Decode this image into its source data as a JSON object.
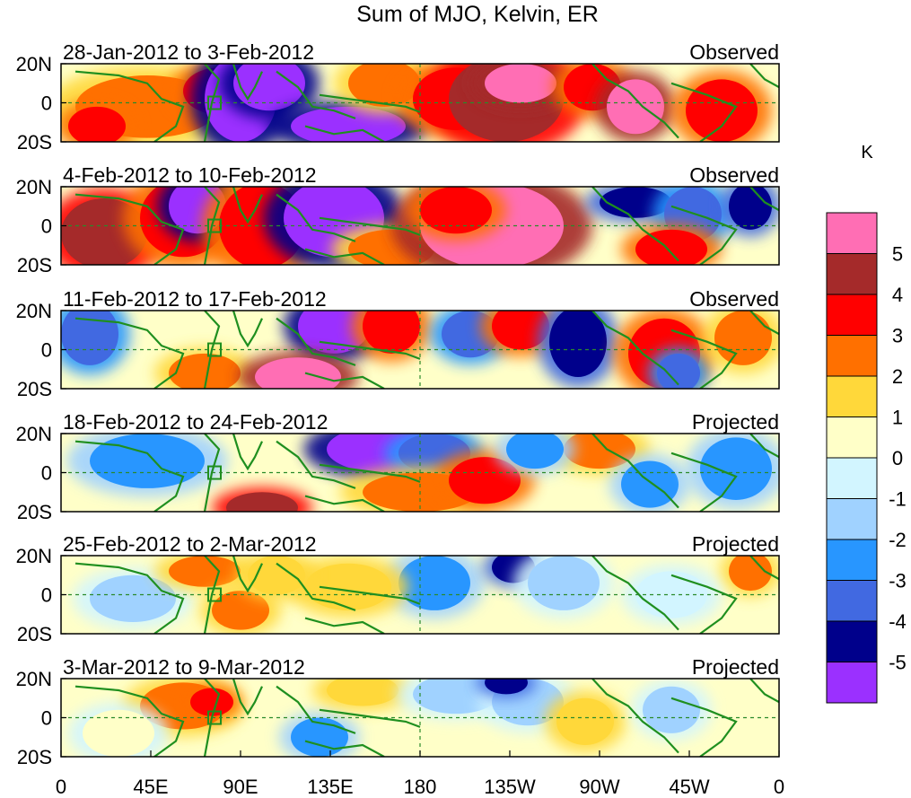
{
  "title": "Sum of MJO, Kelvin, ER",
  "unit": "K",
  "panels": [
    {
      "period": "28-Jan-2012 to 3-Feb-2012",
      "status": "Observed"
    },
    {
      "period": "4-Feb-2012 to 10-Feb-2012",
      "status": "Observed"
    },
    {
      "period": "11-Feb-2012 to 17-Feb-2012",
      "status": "Observed"
    },
    {
      "period": "18-Feb-2012 to 24-Feb-2012",
      "status": "Projected"
    },
    {
      "period": "25-Feb-2012 to 2-Mar-2012",
      "status": "Projected"
    },
    {
      "period": "3-Mar-2012 to 9-Mar-2012",
      "status": "Projected"
    }
  ],
  "lat_labels": [
    "20N",
    "0",
    "20S"
  ],
  "lon_labels": [
    "0",
    "45E",
    "90E",
    "135E",
    "180",
    "135W",
    "90W",
    "45W",
    "0"
  ],
  "colorbar": {
    "labels": [
      "5",
      "4",
      "3",
      "2",
      "1",
      "0",
      "-1",
      "-2",
      "-3",
      "-4",
      "-5"
    ],
    "colors": [
      "#ff6eb4",
      "#a52a2a",
      "#ff0000",
      "#ff7000",
      "#ffd83a",
      "#ffffc8",
      "#d2f5ff",
      "#a0d2ff",
      "#2896ff",
      "#4169e1",
      "#00008b",
      "#9b30ff"
    ]
  },
  "colors": {
    "coast": "#1f8f1f",
    "dashed_ref": "#2a8a2a"
  }
}
